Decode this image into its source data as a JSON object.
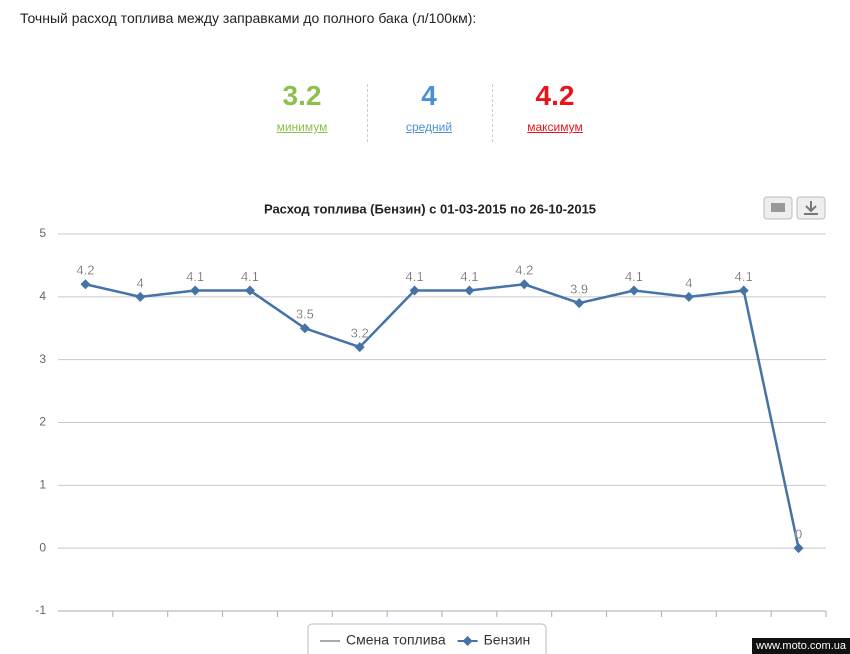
{
  "header": {
    "title": "Точный расход топлива между заправками до полного бака (л/100км):"
  },
  "stats": [
    {
      "value": 3.2,
      "label": "минимум",
      "color": "#8cbf4c"
    },
    {
      "value": 4,
      "label": "средний",
      "color": "#4a90d9"
    },
    {
      "value": 4.2,
      "label": "максимум",
      "color": "#e8141a"
    }
  ],
  "chart_data": {
    "type": "line",
    "title": "Расход топлива (Бензин) с 01-03-2015 по 26-10-2015",
    "categories": [
      null,
      null,
      null,
      null,
      null,
      null,
      null,
      null,
      null,
      null,
      null,
      null,
      null,
      null
    ],
    "series": [
      {
        "name": "Смена топлива",
        "color": "#aaaaaa",
        "values": [
          null,
          null,
          null,
          null,
          null,
          null,
          null,
          null,
          null,
          null,
          null,
          null,
          null,
          null
        ]
      },
      {
        "name": "Бензин",
        "color": "#4572a7",
        "values": [
          4.2,
          4,
          4.1,
          4.1,
          3.5,
          3.2,
          4.1,
          4.1,
          4.2,
          3.9,
          4.1,
          4,
          4.1,
          0
        ]
      }
    ],
    "ylim": [
      -1,
      5
    ],
    "yticks": [
      -1,
      0,
      1,
      2,
      3,
      4,
      5
    ],
    "grid": true,
    "data_labels": true
  },
  "watermark": "www.moto.com.ua"
}
